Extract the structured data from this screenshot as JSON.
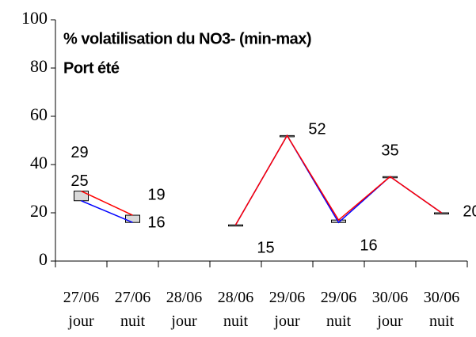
{
  "chart_data": {
    "type": "line",
    "title": "% volatilisation du NO3- (min-max)",
    "subtitle": "Port été",
    "categories": [
      "27/06 jour",
      "27/06 nuit",
      "28/06 jour",
      "28/06 nuit",
      "29/06 jour",
      "29/06 nuit",
      "30/06 jour",
      "30/06 nuit"
    ],
    "series": [
      {
        "color": "#ff0000",
        "values": [
          29,
          19,
          null,
          15,
          52,
          17,
          35,
          20
        ]
      },
      {
        "color": "#0000ff",
        "values": [
          25,
          16,
          null,
          15,
          52,
          16,
          35,
          20
        ]
      }
    ],
    "box_color": "#d9d9d9",
    "ylim": [
      0,
      100
    ],
    "yticks": [
      0,
      20,
      40,
      60,
      80,
      100
    ],
    "grid": false
  }
}
